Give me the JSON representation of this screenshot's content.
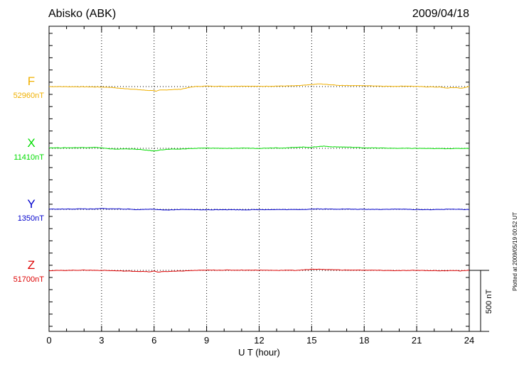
{
  "header": {
    "station": "Abisko (ABK)",
    "date": "2009/04/18"
  },
  "plotted_note": "Plotted at 2009/05/19 00:52 UT",
  "scale_label": "500 nT",
  "chart_data": {
    "type": "line",
    "xlabel": "U T (hour)",
    "xlim": [
      0,
      24
    ],
    "xticks": [
      "0",
      "3",
      "6",
      "9",
      "12",
      "15",
      "18",
      "21",
      "24"
    ],
    "grid": true,
    "series": [
      {
        "name": "F",
        "baseline_label": "52960nT",
        "color": "#f0b000",
        "offset": 0,
        "points": [
          [
            0,
            0
          ],
          [
            1,
            -1
          ],
          [
            2,
            -2
          ],
          [
            3,
            -4
          ],
          [
            3.5,
            -6
          ],
          [
            4,
            -14
          ],
          [
            4.5,
            -18
          ],
          [
            5,
            -24
          ],
          [
            5.5,
            -30
          ],
          [
            5.8,
            -32
          ],
          [
            6,
            -30
          ],
          [
            6.1,
            -40
          ],
          [
            6.3,
            -30
          ],
          [
            6.8,
            -26
          ],
          [
            7.5,
            -22
          ],
          [
            8,
            -8
          ],
          [
            8.3,
            0
          ],
          [
            9,
            4
          ],
          [
            10,
            2
          ],
          [
            11,
            4
          ],
          [
            12,
            2
          ],
          [
            13,
            4
          ],
          [
            14,
            6
          ],
          [
            14.7,
            12
          ],
          [
            15,
            16
          ],
          [
            15.4,
            22
          ],
          [
            15.8,
            18
          ],
          [
            16.5,
            10
          ],
          [
            17.5,
            8
          ],
          [
            18.5,
            6
          ],
          [
            19.5,
            2
          ],
          [
            20.5,
            4
          ],
          [
            21.5,
            -2
          ],
          [
            22.3,
            -4
          ],
          [
            22.7,
            -12
          ],
          [
            23.2,
            -8
          ],
          [
            23.6,
            -14
          ],
          [
            24,
            0
          ]
        ]
      },
      {
        "name": "X",
        "baseline_label": "11410nT",
        "color": "#00dd00",
        "offset": 0,
        "points": [
          [
            0,
            4
          ],
          [
            1,
            4
          ],
          [
            2,
            6
          ],
          [
            2.6,
            8
          ],
          [
            3,
            4
          ],
          [
            3.5,
            -6
          ],
          [
            4,
            -6
          ],
          [
            4.5,
            -4
          ],
          [
            5,
            -8
          ],
          [
            5.5,
            -14
          ],
          [
            6,
            -22
          ],
          [
            6.3,
            -14
          ],
          [
            6.8,
            -8
          ],
          [
            7.5,
            -6
          ],
          [
            8,
            -2
          ],
          [
            9,
            2
          ],
          [
            10,
            0
          ],
          [
            10.5,
            -2
          ],
          [
            11,
            2
          ],
          [
            12,
            0
          ],
          [
            13,
            4
          ],
          [
            13.5,
            2
          ],
          [
            14,
            8
          ],
          [
            14.5,
            10
          ],
          [
            15,
            8
          ],
          [
            15.3,
            14
          ],
          [
            15.7,
            18
          ],
          [
            16.2,
            12
          ],
          [
            17,
            10
          ],
          [
            18,
            4
          ],
          [
            19,
            2
          ],
          [
            20,
            0
          ],
          [
            21,
            0
          ],
          [
            22,
            -2
          ],
          [
            23,
            -2
          ],
          [
            24,
            0
          ]
        ]
      },
      {
        "name": "Y",
        "baseline_label": "1350nT",
        "color": "#0000cc",
        "offset": 0,
        "points": [
          [
            0,
            2
          ],
          [
            1,
            2
          ],
          [
            2,
            4
          ],
          [
            2.5,
            2
          ],
          [
            3,
            6
          ],
          [
            3.5,
            4
          ],
          [
            4,
            4
          ],
          [
            4.5,
            2
          ],
          [
            5,
            -2
          ],
          [
            5.5,
            0
          ],
          [
            6,
            2
          ],
          [
            6.5,
            -6
          ],
          [
            7,
            -4
          ],
          [
            7.5,
            -2
          ],
          [
            8,
            -2
          ],
          [
            9,
            -4
          ],
          [
            10,
            -2
          ],
          [
            11,
            -4
          ],
          [
            12,
            -2
          ],
          [
            13,
            -2
          ],
          [
            14,
            -2
          ],
          [
            14.7,
            0
          ],
          [
            15.3,
            4
          ],
          [
            15.6,
            2
          ],
          [
            16,
            2
          ],
          [
            17,
            2
          ],
          [
            18,
            0
          ],
          [
            19,
            0
          ],
          [
            20,
            2
          ],
          [
            21,
            -2
          ],
          [
            22,
            -2
          ],
          [
            23,
            2
          ],
          [
            24,
            -2
          ]
        ]
      },
      {
        "name": "Z",
        "baseline_label": "51700nT",
        "color": "#dd0000",
        "offset": 0,
        "points": [
          [
            0,
            -2
          ],
          [
            1,
            0
          ],
          [
            2,
            2
          ],
          [
            3,
            0
          ],
          [
            4,
            -4
          ],
          [
            4.5,
            -6
          ],
          [
            5,
            -8
          ],
          [
            5.5,
            -10
          ],
          [
            5.8,
            -12
          ],
          [
            6,
            -6
          ],
          [
            6.2,
            -14
          ],
          [
            6.5,
            -10
          ],
          [
            7,
            -8
          ],
          [
            7.5,
            -6
          ],
          [
            8,
            -2
          ],
          [
            8.4,
            0
          ],
          [
            9,
            2
          ],
          [
            10,
            2
          ],
          [
            11,
            2
          ],
          [
            12,
            2
          ],
          [
            13,
            0
          ],
          [
            13.5,
            2
          ],
          [
            14,
            0
          ],
          [
            14.6,
            4
          ],
          [
            15.1,
            10
          ],
          [
            15.5,
            8
          ],
          [
            16,
            6
          ],
          [
            17,
            2
          ],
          [
            18,
            2
          ],
          [
            19,
            0
          ],
          [
            20,
            -2
          ],
          [
            21,
            0
          ],
          [
            22,
            -2
          ],
          [
            22.6,
            -4
          ],
          [
            23,
            0
          ],
          [
            23.5,
            -4
          ],
          [
            24,
            0
          ]
        ]
      }
    ]
  }
}
